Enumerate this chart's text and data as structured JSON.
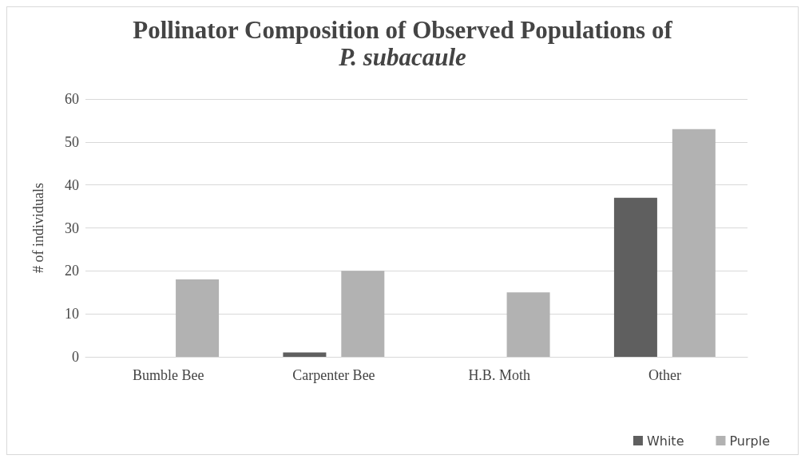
{
  "chart_data": {
    "type": "bar",
    "title": "Pollinator Composition of Observed Populations of\nP. subacaule",
    "ylabel": "# of individuals",
    "categories": [
      "Bumble Bee",
      "Carpenter Bee",
      "H.B. Moth",
      "Other"
    ],
    "series": [
      {
        "name": "White",
        "color": "#5f5f5f",
        "values": [
          0,
          1,
          0,
          37
        ]
      },
      {
        "name": "Purple",
        "color": "#b2b2b2",
        "values": [
          18,
          20,
          15,
          53
        ]
      }
    ],
    "ylim": [
      0,
      60
    ],
    "yticks": [
      0,
      10,
      20,
      30,
      40,
      50,
      60
    ],
    "grid": "y",
    "legend": "bottom right"
  }
}
